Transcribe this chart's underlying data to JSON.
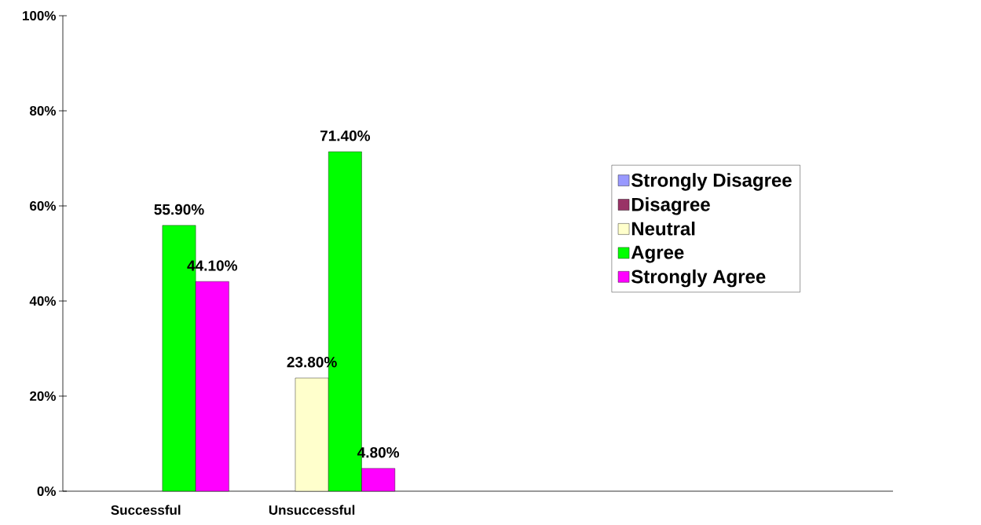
{
  "chart_data": {
    "type": "bar",
    "categories": [
      "Successful",
      "Unsuccessful",
      null,
      null,
      null
    ],
    "series": [
      {
        "name": "Strongly Disagree",
        "color": "#9999ff",
        "values": [
          null,
          null,
          null,
          null,
          null
        ]
      },
      {
        "name": "Disagree",
        "color": "#993366",
        "values": [
          null,
          null,
          null,
          null,
          null
        ]
      },
      {
        "name": "Neutral",
        "color": "#ffffcc",
        "values": [
          null,
          23.8,
          null,
          null,
          null
        ],
        "value_labels": [
          null,
          "23.80%",
          null,
          null,
          null
        ]
      },
      {
        "name": "Agree",
        "color": "#00ff00",
        "values": [
          55.9,
          71.4,
          null,
          null,
          null
        ],
        "value_labels": [
          "55.90%",
          "71.40%",
          null,
          null,
          null
        ]
      },
      {
        "name": "Strongly Agree",
        "color": "#ff00ff",
        "values": [
          44.1,
          4.8,
          null,
          null,
          null
        ],
        "value_labels": [
          "44.10%",
          "4.80%",
          null,
          null,
          null
        ]
      }
    ],
    "ylim": [
      0,
      100
    ],
    "yticks": [
      {
        "value": 0,
        "label": "0%"
      },
      {
        "value": 20,
        "label": "20%"
      },
      {
        "value": 40,
        "label": "40%"
      },
      {
        "value": 60,
        "label": "60%"
      },
      {
        "value": 80,
        "label": "80%"
      },
      {
        "value": 100,
        "label": "100%"
      }
    ],
    "grid": false,
    "legend": "right"
  }
}
